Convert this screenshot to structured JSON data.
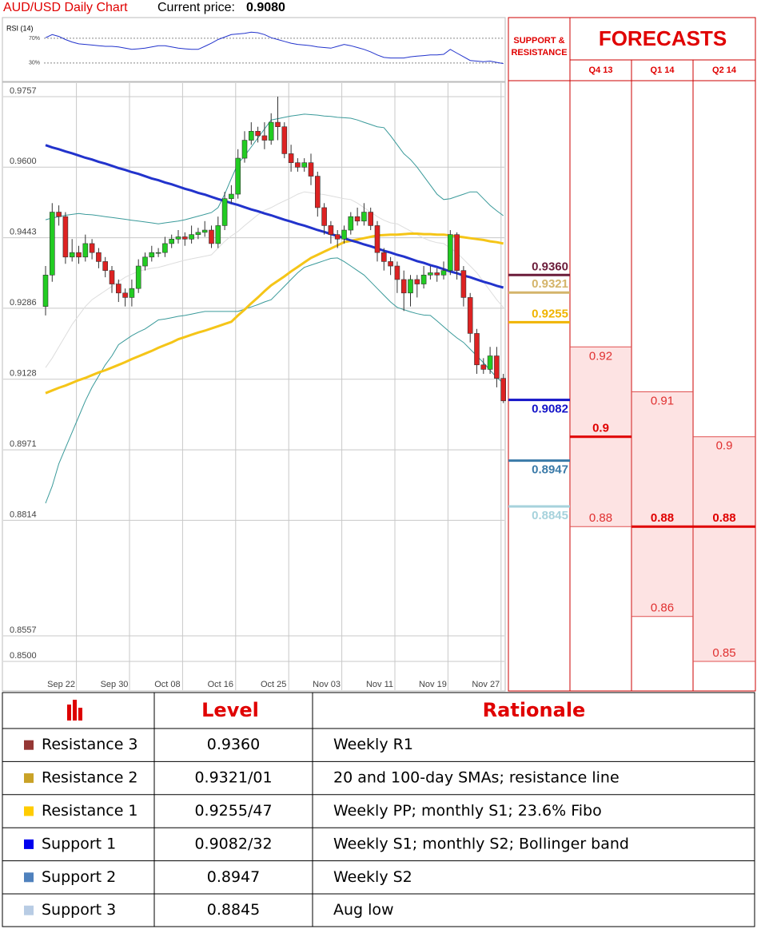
{
  "header": {
    "title": "AUD/USD Daily Chart",
    "price_label": "Current price:",
    "price": "0.9080"
  },
  "chart_data": [
    {
      "type": "line",
      "title": "RSI (14)",
      "ylim": [
        0,
        100
      ],
      "yticks": [
        {
          "value": 70,
          "label": "70%"
        },
        {
          "value": 30,
          "label": "30%"
        }
      ],
      "series": [
        {
          "color": "#2233cc",
          "values": [
            71,
            76,
            73,
            68,
            64,
            61,
            60,
            59,
            58,
            57,
            57,
            56,
            54,
            52,
            53,
            54,
            56,
            58,
            58,
            56,
            54,
            53,
            52,
            52,
            57,
            62,
            68,
            72,
            76,
            77,
            78,
            80,
            79,
            76,
            71,
            68,
            65,
            62,
            60,
            59,
            58,
            56,
            55,
            54,
            57,
            60,
            58,
            55,
            52,
            48,
            43,
            39,
            38,
            38,
            38,
            40,
            41,
            42,
            43,
            43,
            44,
            52,
            46,
            40,
            34,
            33,
            32,
            33,
            31,
            29
          ]
        }
      ]
    },
    {
      "type": "candlestick",
      "categories": [
        null,
        null,
        "Sep 22",
        null,
        null,
        null,
        null,
        null,
        null,
        null,
        "Sep 30",
        null,
        null,
        null,
        null,
        null,
        null,
        null,
        "Oct 08",
        null,
        null,
        null,
        null,
        null,
        null,
        null,
        "Oct 16",
        null,
        null,
        null,
        null,
        null,
        null,
        null,
        "Oct 25",
        null,
        null,
        null,
        null,
        null,
        null,
        null,
        "Nov 03",
        null,
        null,
        null,
        null,
        null,
        null,
        null,
        "Nov 11",
        null,
        null,
        null,
        null,
        null,
        null,
        null,
        "Nov 19",
        null,
        null,
        null,
        null,
        null,
        null,
        null,
        "Nov 27",
        null,
        null,
        null
      ],
      "open": [
        0.929,
        0.936,
        0.95,
        0.949,
        0.94,
        0.941,
        0.94,
        0.943,
        0.941,
        0.939,
        0.937,
        0.934,
        0.932,
        0.931,
        0.933,
        0.938,
        0.94,
        0.941,
        0.941,
        0.943,
        0.944,
        0.9445,
        0.944,
        0.945,
        0.9455,
        0.946,
        0.943,
        0.947,
        0.953,
        0.954,
        0.962,
        0.966,
        0.968,
        0.967,
        0.966,
        0.97,
        0.969,
        0.963,
        0.961,
        0.96,
        0.961,
        0.958,
        0.951,
        0.947,
        0.945,
        0.944,
        0.946,
        0.949,
        0.948,
        0.95,
        0.947,
        0.941,
        0.939,
        0.938,
        0.935,
        0.932,
        0.935,
        0.934,
        0.936,
        0.9365,
        0.936,
        0.937,
        0.945,
        0.937,
        0.931,
        0.923,
        0.916,
        0.915,
        0.918,
        0.913
      ],
      "high": [
        0.938,
        0.952,
        0.9515,
        0.95,
        0.944,
        0.9425,
        0.945,
        0.944,
        0.942,
        0.94,
        0.938,
        0.935,
        0.933,
        0.935,
        0.9395,
        0.941,
        0.9425,
        0.942,
        0.9445,
        0.945,
        0.946,
        0.9455,
        0.947,
        0.9465,
        0.948,
        0.947,
        0.949,
        0.9545,
        0.956,
        0.964,
        0.968,
        0.97,
        0.969,
        0.97,
        0.972,
        0.9757,
        0.97,
        0.965,
        0.962,
        0.962,
        0.963,
        0.959,
        0.952,
        0.948,
        0.946,
        0.947,
        0.95,
        0.951,
        0.952,
        0.951,
        0.948,
        0.942,
        0.94,
        0.939,
        0.937,
        0.936,
        0.936,
        0.938,
        0.938,
        0.9375,
        0.939,
        0.946,
        0.9455,
        0.938,
        0.932,
        0.924,
        0.9175,
        0.92,
        0.92,
        0.914
      ],
      "low": [
        0.927,
        0.9345,
        0.947,
        0.9385,
        0.939,
        0.9385,
        0.939,
        0.9395,
        0.9375,
        0.9355,
        0.932,
        0.93,
        0.929,
        0.929,
        0.932,
        0.937,
        0.939,
        0.94,
        0.94,
        0.942,
        0.943,
        0.9425,
        0.943,
        0.944,
        0.9445,
        0.942,
        0.942,
        0.946,
        0.952,
        0.953,
        0.961,
        0.965,
        0.9655,
        0.964,
        0.965,
        0.966,
        0.962,
        0.959,
        0.959,
        0.959,
        0.956,
        0.949,
        0.945,
        0.943,
        0.942,
        0.943,
        0.945,
        0.947,
        0.947,
        0.946,
        0.939,
        0.937,
        0.936,
        0.932,
        0.928,
        0.929,
        0.931,
        0.933,
        0.935,
        0.9345,
        0.935,
        0.936,
        0.935,
        0.929,
        0.921,
        0.914,
        0.914,
        0.914,
        0.911,
        0.9075
      ],
      "close": [
        0.936,
        0.95,
        0.949,
        0.94,
        0.941,
        0.94,
        0.943,
        0.941,
        0.939,
        0.937,
        0.934,
        0.932,
        0.931,
        0.933,
        0.938,
        0.94,
        0.941,
        0.941,
        0.943,
        0.944,
        0.9445,
        0.944,
        0.945,
        0.9455,
        0.946,
        0.943,
        0.947,
        0.953,
        0.954,
        0.962,
        0.966,
        0.968,
        0.967,
        0.966,
        0.97,
        0.969,
        0.963,
        0.961,
        0.96,
        0.961,
        0.958,
        0.951,
        0.947,
        0.945,
        0.944,
        0.946,
        0.949,
        0.948,
        0.95,
        0.947,
        0.941,
        0.939,
        0.938,
        0.935,
        0.932,
        0.935,
        0.934,
        0.936,
        0.9365,
        0.936,
        0.937,
        0.945,
        0.937,
        0.931,
        0.923,
        0.916,
        0.915,
        0.918,
        0.913,
        0.908
      ],
      "up_color": "#22cc22",
      "down_color": "#dd2222",
      "series": [
        {
          "color": "#dddddd",
          "width": 1,
          "values": [
            0.9154,
            0.9175,
            0.92,
            0.9225,
            0.925,
            0.927,
            0.929,
            0.9305,
            0.9315,
            0.9325,
            0.9335,
            0.9345,
            0.9355,
            0.9362,
            0.9368,
            0.9372,
            0.9375,
            0.9377,
            0.9381,
            0.9385,
            0.9389,
            0.9393,
            0.9396,
            0.9399,
            0.9402,
            0.9405,
            0.942,
            0.9435,
            0.9447,
            0.9457,
            0.947,
            0.9482,
            0.9494,
            0.9504,
            0.951,
            0.9518,
            0.9525,
            0.9532,
            0.954,
            0.9545,
            0.9543,
            0.9541,
            0.9539,
            0.9536,
            0.9533,
            0.953,
            0.9528,
            0.952,
            0.951,
            0.95,
            0.949,
            0.9482,
            0.9476,
            0.9474,
            0.9466,
            0.9458,
            0.945,
            0.9442,
            0.9436,
            0.9432,
            0.943,
            0.942,
            0.941,
            0.9395,
            0.938,
            0.9365,
            0.9345,
            0.9325,
            0.9305,
            0.9288
          ]
        },
        {
          "color": "#3a9a9a",
          "width": 1,
          "values": [
            0.9483,
            0.9487,
            0.949,
            0.9493,
            0.9495,
            0.9497,
            0.9495,
            0.9494,
            0.9492,
            0.949,
            0.9488,
            0.9486,
            0.9484,
            0.9482,
            0.948,
            0.9478,
            0.9476,
            0.9474,
            0.9476,
            0.9478,
            0.948,
            0.9483,
            0.9487,
            0.9491,
            0.9495,
            0.9499,
            0.951,
            0.954,
            0.9575,
            0.9608,
            0.9625,
            0.9645,
            0.9665,
            0.9685,
            0.9705,
            0.9708,
            0.9711,
            0.9714,
            0.9716,
            0.9718,
            0.9717,
            0.9716,
            0.9714,
            0.9713,
            0.9711,
            0.971,
            0.9709,
            0.9705,
            0.97,
            0.9695,
            0.969,
            0.9688,
            0.967,
            0.965,
            0.963,
            0.9617,
            0.96,
            0.958,
            0.956,
            0.954,
            0.9528,
            0.953,
            0.9535,
            0.954,
            0.9545,
            0.9545,
            0.953,
            0.9515,
            0.9503,
            0.9492
          ]
        },
        {
          "color": "#3a9a9a",
          "width": 1,
          "values": [
            0.8852,
            0.889,
            0.894,
            0.8975,
            0.901,
            0.9045,
            0.908,
            0.911,
            0.9135,
            0.916,
            0.918,
            0.9205,
            0.9215,
            0.9225,
            0.9233,
            0.924,
            0.925,
            0.926,
            0.9262,
            0.9265,
            0.9268,
            0.927,
            0.9273,
            0.9276,
            0.9279,
            0.9279,
            0.9279,
            0.9279,
            0.9279,
            0.9279,
            0.9284,
            0.9289,
            0.9294,
            0.93,
            0.9305,
            0.932,
            0.9335,
            0.935,
            0.9365,
            0.9377,
            0.9382,
            0.9387,
            0.9392,
            0.9397,
            0.9398,
            0.939,
            0.938,
            0.937,
            0.936,
            0.9345,
            0.933,
            0.9315,
            0.93,
            0.9288,
            0.9283,
            0.9278,
            0.9274,
            0.9271,
            0.927,
            0.9258,
            0.9245,
            0.9232,
            0.922,
            0.921,
            0.9195,
            0.918,
            0.9165,
            0.9148,
            0.9132,
            0.9119
          ]
        },
        {
          "color": "#f5c518",
          "width": 3,
          "values": [
            0.9097,
            0.9103,
            0.9109,
            0.9114,
            0.912,
            0.9126,
            0.9131,
            0.9137,
            0.9143,
            0.9148,
            0.9154,
            0.916,
            0.9166,
            0.9173,
            0.9179,
            0.9185,
            0.9191,
            0.9198,
            0.9204,
            0.921,
            0.9217,
            0.9222,
            0.9227,
            0.9232,
            0.9236,
            0.9241,
            0.9246,
            0.9251,
            0.9256,
            0.927,
            0.9283,
            0.9297,
            0.931,
            0.9324,
            0.9337,
            0.9347,
            0.9357,
            0.9368,
            0.9378,
            0.9388,
            0.9398,
            0.9405,
            0.9412,
            0.9419,
            0.9426,
            0.9433,
            0.9436,
            0.9439,
            0.9442,
            0.9445,
            0.9448,
            0.9449,
            0.945,
            0.945,
            0.9451,
            0.9452,
            0.9452,
            0.9451,
            0.9451,
            0.945,
            0.945,
            0.9448,
            0.9446,
            0.9444,
            0.9442,
            0.944,
            0.9438,
            0.9435,
            0.9433,
            0.943
          ]
        },
        {
          "color": "#2233cc",
          "width": 3,
          "values": [
            0.9649,
            0.9644,
            0.964,
            0.9635,
            0.9631,
            0.9626,
            0.9621,
            0.9617,
            0.9612,
            0.9608,
            0.9603,
            0.9598,
            0.9594,
            0.9589,
            0.9585,
            0.958,
            0.9575,
            0.9571,
            0.9566,
            0.9562,
            0.9557,
            0.9552,
            0.9548,
            0.9543,
            0.9539,
            0.9534,
            0.9529,
            0.9525,
            0.952,
            0.9516,
            0.9511,
            0.9506,
            0.9502,
            0.9497,
            0.9493,
            0.9488,
            0.9483,
            0.9479,
            0.9474,
            0.947,
            0.9465,
            0.946,
            0.9456,
            0.9451,
            0.9447,
            0.9442,
            0.9437,
            0.9433,
            0.9428,
            0.9424,
            0.9419,
            0.9414,
            0.941,
            0.9405,
            0.9401,
            0.9396,
            0.9391,
            0.9387,
            0.9382,
            0.9378,
            0.9373,
            0.9368,
            0.9364,
            0.9359,
            0.9355,
            0.935,
            0.9345,
            0.9341,
            0.9336,
            0.9332
          ]
        }
      ],
      "ylim": [
        0.85,
        0.9757
      ],
      "yticks": [
        0.9757,
        {
          "value": 0.96,
          "label": "0.9600"
        },
        0.9443,
        0.9286,
        0.9128,
        0.8971,
        0.8814,
        0.8557,
        {
          "value": 0.85,
          "label": "0.8500"
        }
      ],
      "grid": true
    }
  ],
  "support_resistance": {
    "title": "SUPPORT & RESISTANCE",
    "levels": [
      {
        "value": 0.936,
        "label": "0.9360",
        "color": "#6b1c3a"
      },
      {
        "value": 0.9321,
        "color": "#d4b46a"
      },
      {
        "value": 0.9255,
        "color": "#f0b400"
      },
      {
        "value": 0.9082,
        "color": "#1414c8"
      },
      {
        "value": 0.8947,
        "color": "#3a7aa8"
      },
      {
        "value": 0.8845,
        "color": "#a6d2dc"
      }
    ]
  },
  "forecasts": {
    "title": "FORECASTS",
    "columns": [
      {
        "name": "Q4 13",
        "high": 0.92,
        "mid": 0.9,
        "low": 0.88
      },
      {
        "name": "Q1 14",
        "high": 0.91,
        "mid": 0.88,
        "low": 0.86
      },
      {
        "name": "Q2 14",
        "high": 0.9,
        "mid": 0.88,
        "low": 0.85
      }
    ]
  },
  "table": {
    "header": [
      "Level",
      "Rationale"
    ],
    "rows": [
      {
        "name": "Resistance 3",
        "color": "#953735",
        "level": "0.9360",
        "rationale": "Weekly R1"
      },
      {
        "name": "Resistance 2",
        "color": "#c9a227",
        "level": "0.9321/01",
        "rationale": "20 and 100-day SMAs; resistance line"
      },
      {
        "name": "Resistance 1",
        "color": "#ffcc00",
        "level": "0.9255/47",
        "rationale": "Weekly PP; monthly S1; 23.6% Fibo"
      },
      {
        "name": "Support 1",
        "color": "#0000ee",
        "level": "0.9082/32",
        "rationale": "Weekly S1; monthly S2; Bollinger band"
      },
      {
        "name": "Support 2",
        "color": "#4f81bd",
        "level": "0.8947",
        "rationale": "Weekly S2"
      },
      {
        "name": "Support 3",
        "color": "#b8cce4",
        "level": "0.8845",
        "rationale": "Aug low"
      }
    ]
  }
}
